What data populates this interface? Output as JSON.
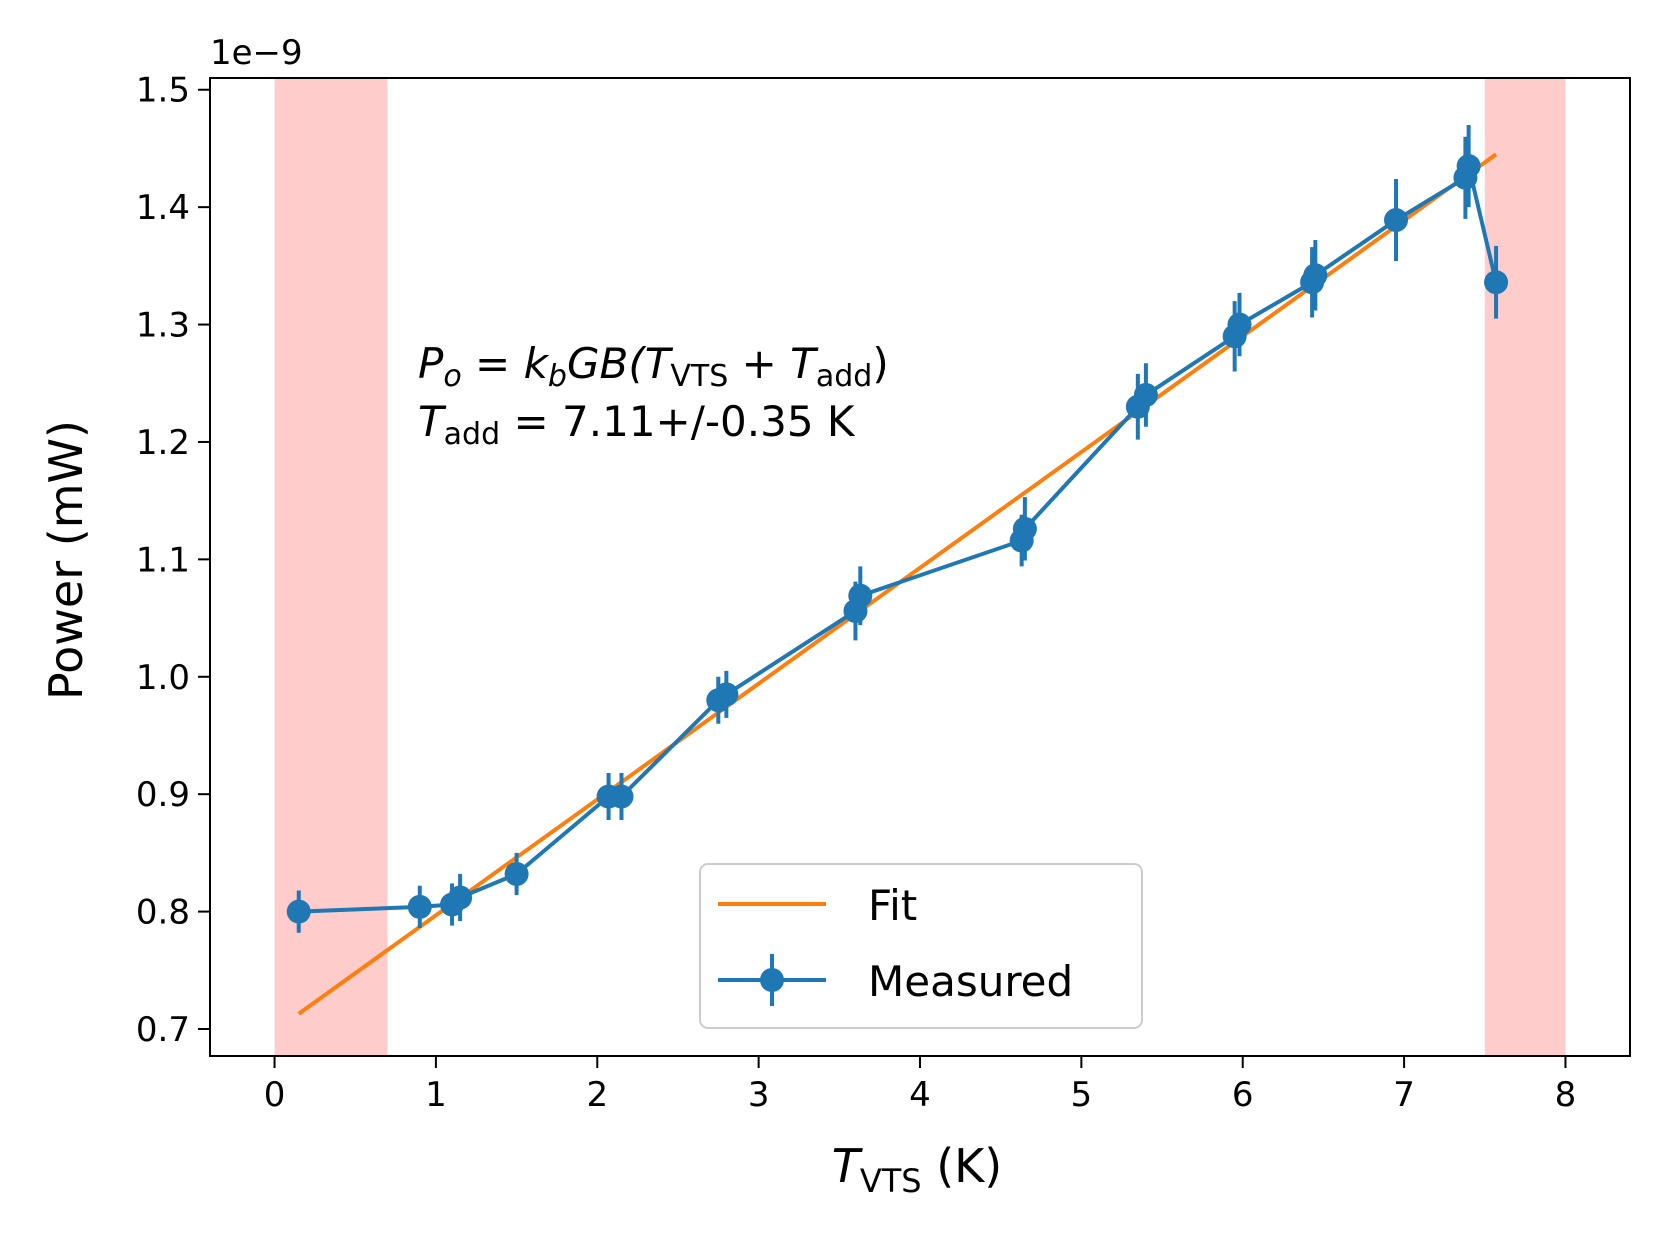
{
  "chart_data": {
    "type": "line",
    "title": "",
    "xlabel": {
      "main": "T",
      "sub": "VTS",
      "suffix": " (K)"
    },
    "ylabel": "Power (mW)",
    "y_offset_label": "1e−9",
    "xlim": [
      -0.4,
      8.4
    ],
    "ylim": [
      0.677,
      1.51
    ],
    "x_ticks": [
      0,
      1,
      2,
      3,
      4,
      5,
      6,
      7,
      8
    ],
    "x_tick_labels": [
      "0",
      "1",
      "2",
      "3",
      "4",
      "5",
      "6",
      "7",
      "8"
    ],
    "y_ticks": [
      0.7,
      0.8,
      0.9,
      1.0,
      1.1,
      1.2,
      1.3,
      1.4,
      1.5
    ],
    "y_tick_labels": [
      "0.7",
      "0.8",
      "0.9",
      "1.0",
      "1.1",
      "1.2",
      "1.3",
      "1.4",
      "1.5"
    ],
    "shaded_regions": [
      {
        "x_start": 0.0,
        "x_end": 0.7,
        "color": "#ffcccc"
      },
      {
        "x_start": 7.5,
        "x_end": 8.0,
        "color": "#ffcccc"
      }
    ],
    "series": [
      {
        "name": "Fit",
        "kind": "line",
        "color": "#ff7f0e",
        "x": [
          0.15,
          7.57
        ],
        "y": [
          0.713,
          1.445
        ]
      },
      {
        "name": "Measured",
        "kind": "errorbar",
        "color": "#1f77b4",
        "x": [
          0.15,
          0.9,
          1.1,
          1.15,
          1.5,
          2.07,
          2.15,
          2.75,
          2.8,
          3.6,
          3.63,
          4.63,
          4.65,
          5.35,
          5.4,
          5.95,
          5.98,
          6.43,
          6.45,
          6.95,
          7.38,
          7.4,
          7.57
        ],
        "y": [
          0.8,
          0.804,
          0.806,
          0.812,
          0.832,
          0.898,
          0.898,
          0.98,
          0.985,
          1.056,
          1.069,
          1.116,
          1.126,
          1.23,
          1.24,
          1.29,
          1.3,
          1.336,
          1.342,
          1.389,
          1.425,
          1.435,
          1.336
        ],
        "yerr": [
          0.018,
          0.018,
          0.018,
          0.02,
          0.018,
          0.02,
          0.02,
          0.02,
          0.02,
          0.025,
          0.025,
          0.022,
          0.027,
          0.028,
          0.027,
          0.03,
          0.027,
          0.03,
          0.03,
          0.035,
          0.035,
          0.035,
          0.031
        ]
      }
    ],
    "annotation": {
      "line1": {
        "P": "P",
        "o": "o",
        "eq": " = ",
        "k": "k",
        "b": "b",
        "GB": "GB(",
        "T1": "T",
        "vts": "VTS",
        "plus": " + ",
        "T2": "T",
        "add": "add",
        "close": ")"
      },
      "line2": {
        "T": "T",
        "add": "add",
        "value": " = 7.11+/-0.35 K"
      }
    },
    "legend": {
      "position": "lower-center",
      "entries": [
        "Fit",
        "Measured"
      ]
    }
  }
}
